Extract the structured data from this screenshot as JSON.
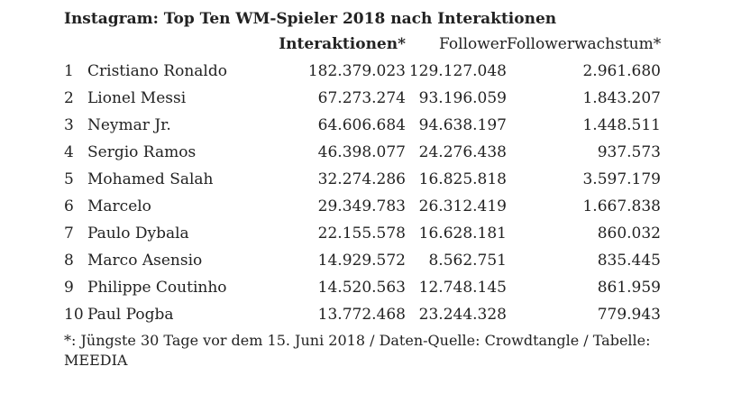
{
  "title": "Instagram: Top Ten WM-Spieler 2018 nach Interaktionen",
  "columns": {
    "interactions": "Interaktionen*",
    "followers": "Follower",
    "growth": "Followerwachstum*"
  },
  "rows": [
    {
      "rank": "1",
      "name": "Cristiano Ronaldo",
      "interactions": "182.379.023",
      "followers": "129.127.048",
      "growth": "2.961.680"
    },
    {
      "rank": "2",
      "name": "Lionel Messi",
      "interactions": "67.273.274",
      "followers": "93.196.059",
      "growth": "1.843.207"
    },
    {
      "rank": "3",
      "name": "Neymar Jr.",
      "interactions": "64.606.684",
      "followers": "94.638.197",
      "growth": "1.448.511"
    },
    {
      "rank": "4",
      "name": "Sergio Ramos",
      "interactions": "46.398.077",
      "followers": "24.276.438",
      "growth": "937.573"
    },
    {
      "rank": "5",
      "name": "Mohamed Salah",
      "interactions": "32.274.286",
      "followers": "16.825.818",
      "growth": "3.597.179"
    },
    {
      "rank": "6",
      "name": "Marcelo",
      "interactions": "29.349.783",
      "followers": "26.312.419",
      "growth": "1.667.838"
    },
    {
      "rank": "7",
      "name": "Paulo Dybala",
      "interactions": "22.155.578",
      "followers": "16.628.181",
      "growth": "860.032"
    },
    {
      "rank": "8",
      "name": "Marco Asensio",
      "interactions": "14.929.572",
      "followers": "8.562.751",
      "growth": "835.445"
    },
    {
      "rank": "9",
      "name": "Philippe Coutinho",
      "interactions": "14.520.563",
      "followers": "12.748.145",
      "growth": "861.959"
    },
    {
      "rank": "10",
      "name": "Paul Pogba",
      "interactions": "13.772.468",
      "followers": "23.244.328",
      "growth": "779.943"
    }
  ],
  "footnote": "*: Jüngste 30 Tage vor dem 15. Juni 2018 / Daten-Quelle: Crowdtangle / Tabelle: MEEDIA"
}
